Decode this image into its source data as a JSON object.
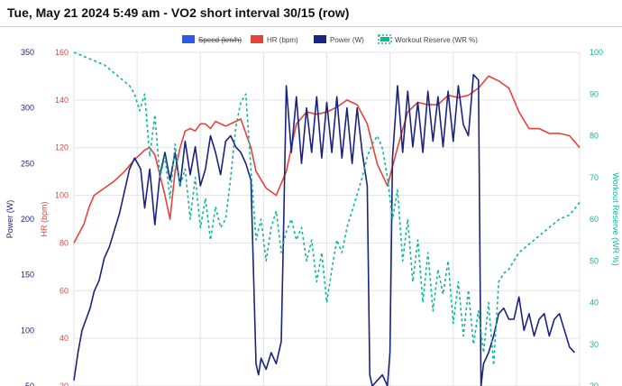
{
  "header": {
    "title": "Tue, May 21 2024 5:49 am - VO2 short interval 30/15 (row)"
  },
  "colors": {
    "speed": "#2d5be3",
    "hr": "#e8423a",
    "power": "#1a237e",
    "wr": "#0bb89a",
    "grid": "#e3e3e3"
  },
  "chart_data": {
    "type": "line",
    "legend": {
      "placement": "top-center"
    },
    "grid": true,
    "x_grid_lines": 8,
    "axes": {
      "power": {
        "label": "Power (W)",
        "min": 50,
        "max": 350,
        "ticks": [
          50,
          100,
          150,
          200,
          250,
          300,
          350
        ],
        "side": "left-outer"
      },
      "hr": {
        "label": "HR (bpm)",
        "min": 20,
        "max": 160,
        "ticks": [
          20,
          40,
          60,
          80,
          100,
          120,
          140,
          160
        ],
        "side": "left-inner"
      },
      "wr": {
        "label": "Workout Reserve (WR %)",
        "min": 20,
        "max": 100,
        "ticks": [
          20,
          30,
          40,
          50,
          60,
          70,
          80,
          90,
          100
        ],
        "side": "right"
      }
    },
    "series": [
      {
        "name": "Speed (km/h)",
        "axis": "hr",
        "hidden": true,
        "x": [],
        "values": []
      },
      {
        "name": "HR (bpm)",
        "axis": "hr",
        "dashed": false,
        "x": [
          0,
          2,
          3,
          4,
          6,
          8,
          10,
          12,
          14,
          15,
          16,
          18,
          19,
          20,
          21,
          22,
          23,
          24,
          25,
          26,
          27,
          28,
          30,
          32,
          33,
          35,
          36,
          38,
          40,
          42,
          44,
          46,
          48,
          50,
          52,
          54,
          56,
          58,
          60,
          62,
          64,
          66,
          68,
          70,
          72,
          74,
          76,
          78,
          80,
          82,
          84,
          86,
          88,
          90,
          92,
          94,
          96,
          98,
          100
        ],
        "values": [
          80,
          88,
          95,
          100,
          103,
          106,
          110,
          115,
          119,
          120,
          117,
          100,
          90,
          110,
          120,
          127,
          128,
          127,
          130,
          130,
          128,
          131,
          129,
          131,
          132,
          120,
          110,
          103,
          100,
          110,
          130,
          135,
          134,
          135,
          137,
          140,
          138,
          130,
          113,
          104,
          120,
          135,
          139,
          138,
          138,
          142,
          141,
          142,
          145,
          150,
          148,
          145,
          135,
          128,
          128,
          126,
          126,
          125,
          120
        ]
      },
      {
        "name": "Power (W)",
        "axis": "power",
        "dashed": false,
        "x": [
          0,
          0.8,
          1.6,
          2.4,
          3.2,
          4,
          5,
          6,
          7,
          8,
          9,
          10,
          11,
          12,
          12.6,
          13.2,
          14,
          15,
          16,
          17,
          18,
          19,
          20,
          21,
          22,
          23,
          24,
          25,
          26,
          27,
          28,
          29,
          30,
          31,
          32,
          33,
          34,
          35,
          36,
          36.5,
          37,
          38,
          39,
          40,
          41,
          41.5,
          42,
          43,
          44,
          45,
          46,
          47,
          48,
          49,
          50,
          51,
          52,
          53,
          54,
          55,
          56,
          57,
          58,
          58.5,
          59,
          60,
          61,
          62,
          62.5,
          63,
          64,
          65,
          66,
          67,
          68,
          69,
          70,
          71,
          72,
          73,
          74,
          75,
          76,
          77,
          78,
          79,
          80,
          80.5,
          81,
          82,
          83,
          84,
          85,
          86,
          87,
          88,
          89,
          90,
          91,
          92,
          93,
          94,
          95,
          96,
          97,
          98,
          99
        ],
        "values": [
          55,
          80,
          100,
          110,
          120,
          135,
          145,
          165,
          175,
          190,
          205,
          225,
          245,
          255,
          250,
          245,
          210,
          245,
          195,
          240,
          260,
          235,
          260,
          230,
          270,
          240,
          265,
          230,
          245,
          275,
          260,
          240,
          270,
          275,
          265,
          260,
          250,
          235,
          70,
          60,
          75,
          65,
          80,
          70,
          90,
          200,
          320,
          260,
          310,
          250,
          300,
          260,
          310,
          255,
          305,
          260,
          310,
          255,
          300,
          250,
          300,
          260,
          230,
          60,
          50,
          55,
          60,
          50,
          80,
          255,
          320,
          260,
          315,
          265,
          305,
          260,
          315,
          270,
          310,
          265,
          315,
          270,
          320,
          285,
          275,
          330,
          325,
          50,
          70,
          80,
          95,
          115,
          120,
          110,
          110,
          130,
          100,
          115,
          95,
          110,
          115,
          95,
          110,
          115,
          100,
          85,
          80
        ]
      },
      {
        "name": "Workout Reserve (WR %)",
        "axis": "wr",
        "dashed": true,
        "x": [
          0,
          2,
          4,
          6,
          8,
          10,
          11,
          12,
          13,
          14,
          15,
          16,
          17,
          18,
          19,
          20,
          21,
          22,
          23,
          24,
          25,
          26,
          27,
          28,
          29,
          30,
          31,
          32,
          33,
          34,
          35,
          36,
          37,
          38,
          39,
          40,
          41,
          42,
          43,
          44,
          45,
          46,
          47,
          48,
          49,
          50,
          51,
          52,
          53,
          54,
          55,
          56,
          57,
          58,
          59,
          60,
          61,
          62,
          63,
          64,
          65,
          66,
          67,
          68,
          69,
          70,
          71,
          72,
          73,
          74,
          75,
          76,
          77,
          78,
          79,
          80,
          81,
          82,
          83,
          84,
          85,
          86,
          87,
          88,
          90,
          92,
          94,
          96,
          98,
          100
        ],
        "values": [
          100,
          99,
          98,
          97,
          95,
          93,
          92,
          90,
          86,
          90,
          75,
          85,
          70,
          75,
          65,
          78,
          68,
          72,
          60,
          70,
          58,
          65,
          55,
          63,
          58,
          60,
          70,
          82,
          88,
          90,
          72,
          55,
          60,
          50,
          58,
          62,
          52,
          57,
          60,
          55,
          58,
          50,
          55,
          45,
          52,
          40,
          48,
          55,
          52,
          58,
          62,
          66,
          70,
          75,
          78,
          80,
          77,
          70,
          60,
          67,
          50,
          60,
          45,
          55,
          40,
          52,
          38,
          48,
          42,
          50,
          35,
          45,
          32,
          43,
          30,
          38,
          28,
          40,
          25,
          45,
          47,
          48,
          50,
          52,
          54,
          56,
          58,
          60,
          61,
          64
        ]
      }
    ]
  }
}
